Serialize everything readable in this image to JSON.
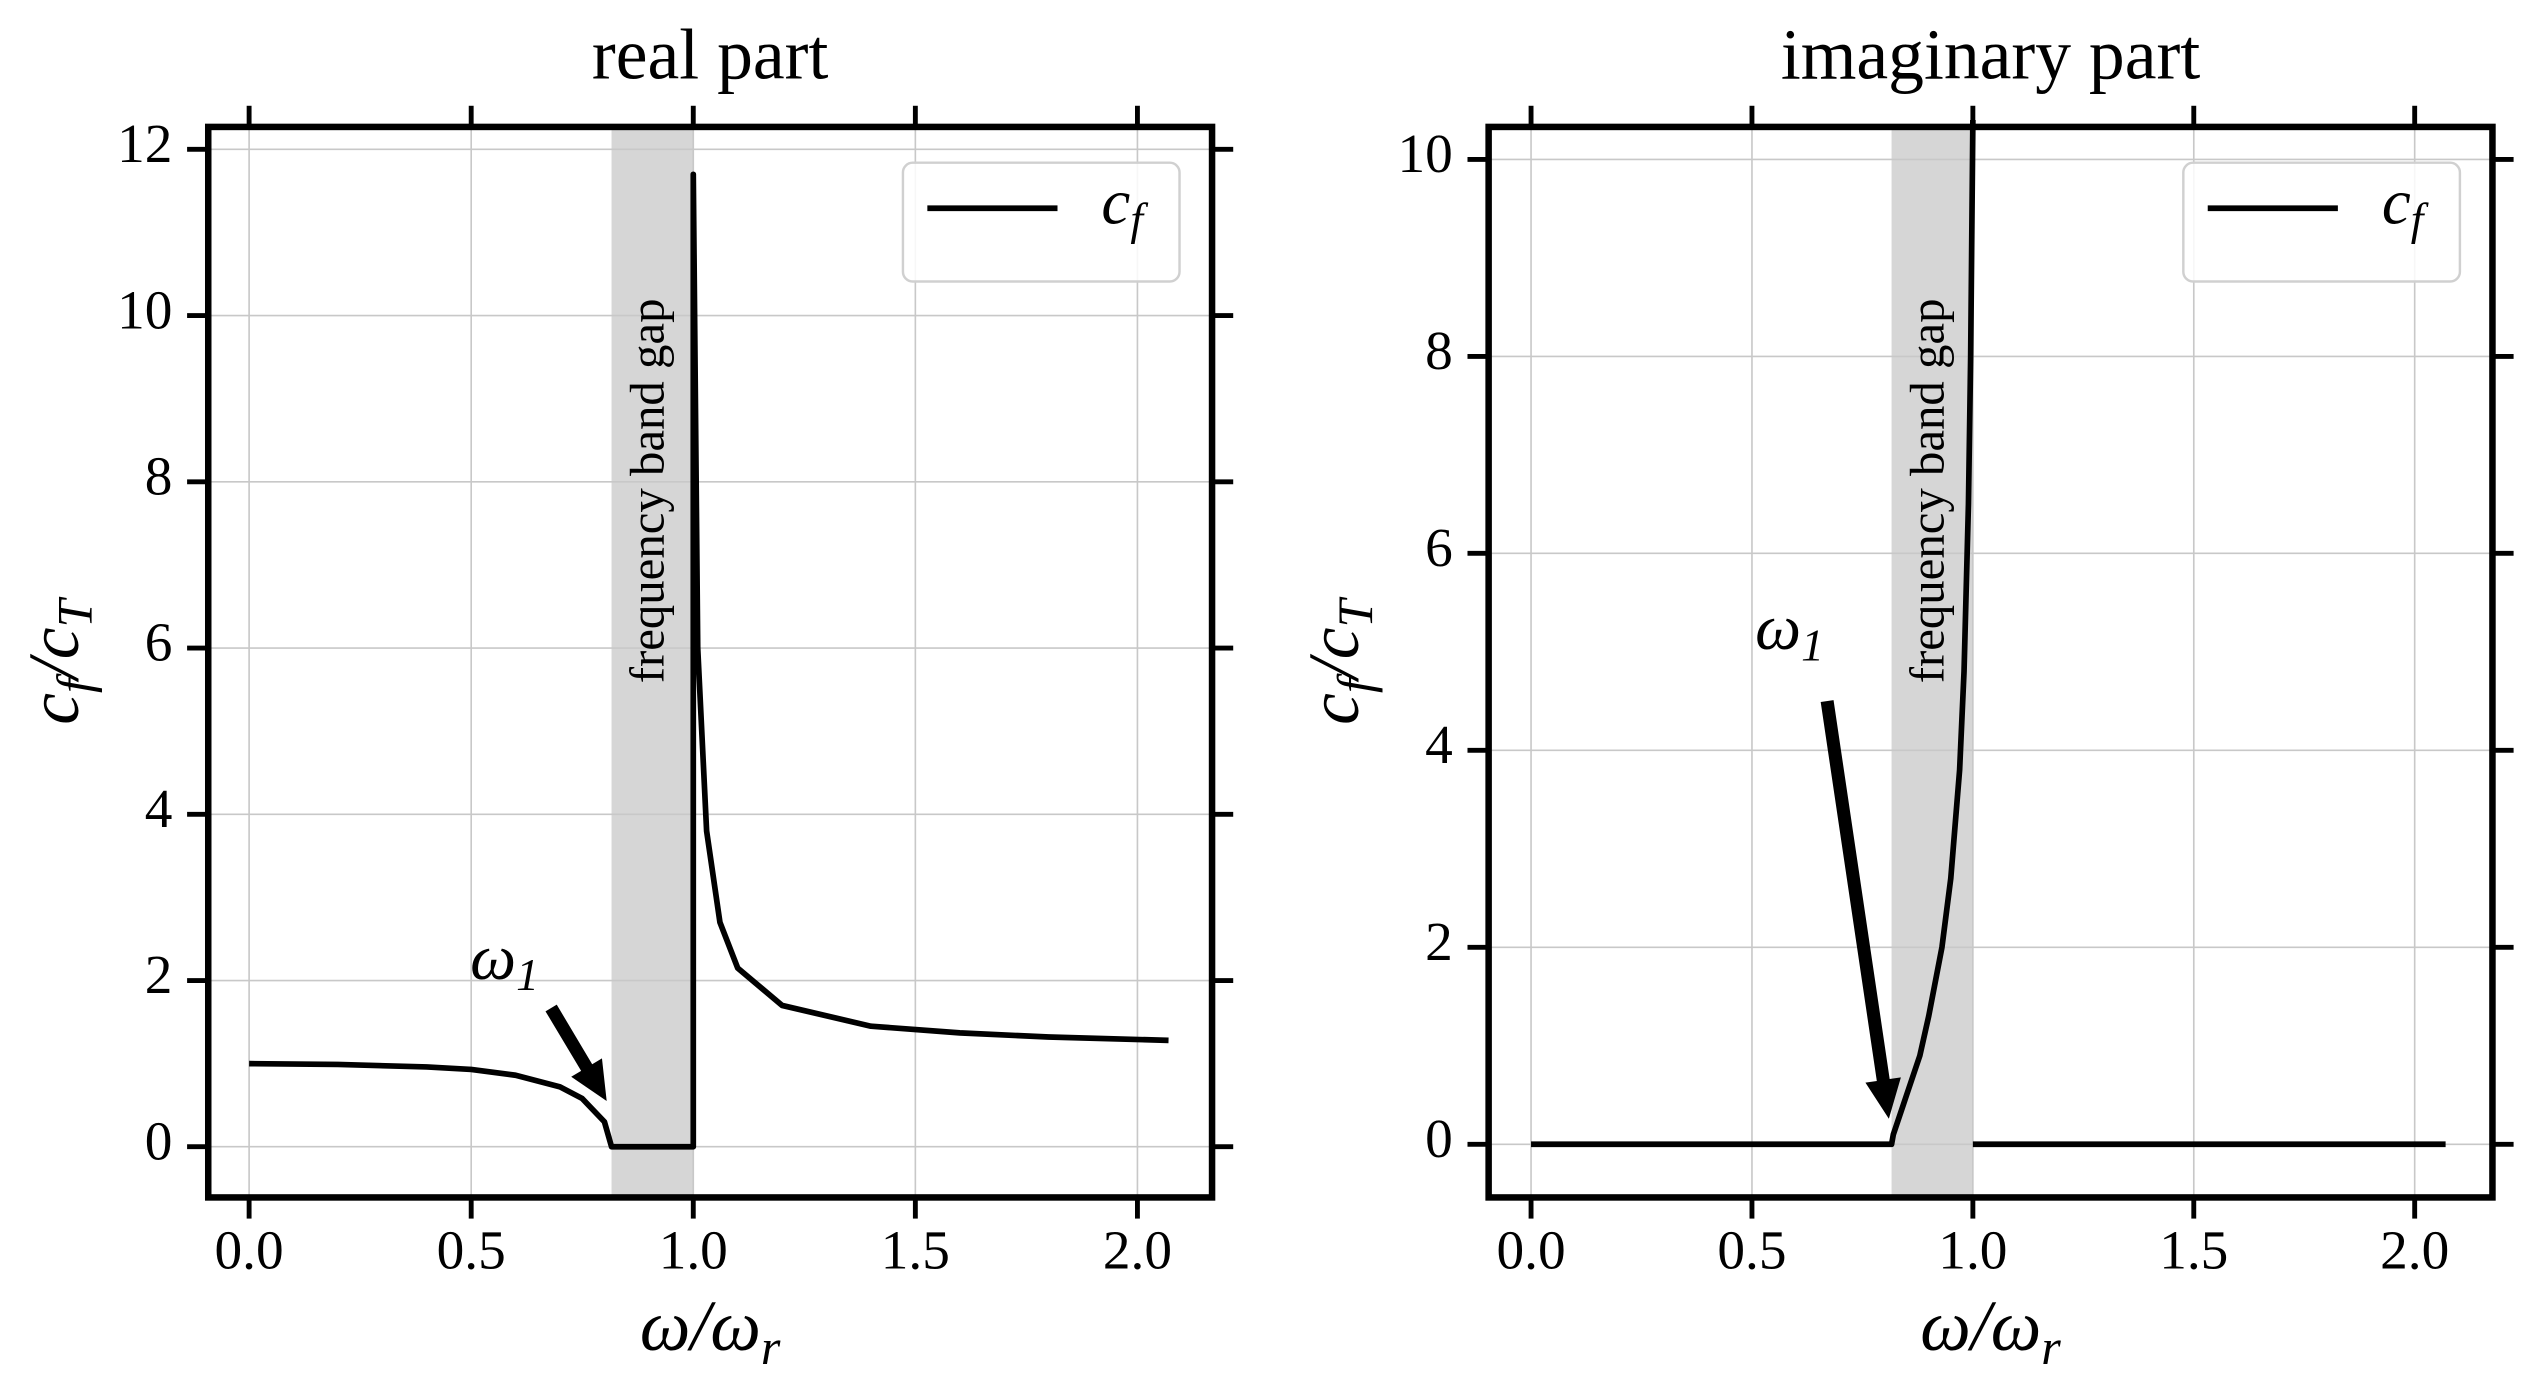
{
  "chart_data": [
    {
      "type": "line",
      "title": "real part",
      "xlabel": [
        "ω/ω",
        "r"
      ],
      "ylabel": [
        "c",
        "f",
        "/c",
        "T"
      ],
      "x": [
        0,
        0.2,
        0.4,
        0.5,
        0.6,
        0.7,
        0.75,
        0.8,
        0.816,
        1.0,
        1.0,
        1.01,
        1.03,
        1.06,
        1.1,
        1.2,
        1.4,
        1.6,
        1.8,
        2.07
      ],
      "series": [
        {
          "name": [
            "c",
            "f"
          ],
          "color": "#000000",
          "values": [
            1.0,
            0.99,
            0.96,
            0.93,
            0.86,
            0.72,
            0.58,
            0.3,
            0,
            0,
            11.7,
            6.0,
            3.8,
            2.7,
            2.15,
            1.7,
            1.45,
            1.37,
            1.32,
            1.28
          ]
        }
      ],
      "band": [
        0.816,
        1.0
      ],
      "band_label": "frequency band gap",
      "annotation": {
        "text": [
          "ω",
          "1"
        ],
        "xytext": [
          0.575,
          2.2
        ],
        "tail": [
          0.68,
          1.67
        ],
        "xy": [
          0.805,
          0.55
        ]
      },
      "xlim": [
        -0.092,
        2.168
      ],
      "ylim": [
        -0.61,
        12.27
      ],
      "xticks": [
        {
          "value": 0,
          "label": "0.0"
        },
        0.5,
        {
          "value": 1,
          "label": "1.0"
        },
        1.5,
        {
          "value": 2,
          "label": "2.0"
        }
      ],
      "yticks": [
        0,
        2,
        4,
        6,
        8,
        10,
        12
      ],
      "grid": true,
      "legend": "upper right"
    },
    {
      "type": "line",
      "title": "imaginary part",
      "xlabel": [
        "ω/ω",
        "r"
      ],
      "ylabel": [
        "c",
        "f",
        "/c",
        "T"
      ],
      "x": [
        0,
        0.816,
        0.82,
        0.85,
        0.88,
        0.9,
        0.93,
        0.95,
        0.97,
        0.98,
        0.99,
        0.995,
        1.0,
        null,
        1.0,
        2.07
      ],
      "series": [
        {
          "name": [
            "c",
            "f"
          ],
          "color": "#000000",
          "values": [
            0,
            0,
            0.1,
            0.5,
            0.9,
            1.3,
            2.0,
            2.7,
            3.8,
            4.8,
            6.5,
            8.0,
            10.4,
            null,
            0,
            0
          ]
        }
      ],
      "band": [
        0.816,
        1.0
      ],
      "band_label": "frequency band gap",
      "annotation": {
        "text": [
          "ω",
          "1"
        ],
        "xytext": [
          0.585,
          5.18
        ],
        "tail": [
          0.67,
          4.5
        ],
        "xy": [
          0.81,
          0.26
        ]
      },
      "xlim": [
        -0.096,
        2.176
      ],
      "ylim": [
        -0.54,
        10.33
      ],
      "xticks": [
        {
          "value": 0,
          "label": "0.0"
        },
        0.5,
        {
          "value": 1,
          "label": "1.0"
        },
        1.5,
        {
          "value": 2,
          "label": "2.0"
        }
      ],
      "yticks": [
        0,
        2,
        4,
        6,
        8,
        10
      ],
      "grid": true,
      "legend": "upper right"
    }
  ]
}
